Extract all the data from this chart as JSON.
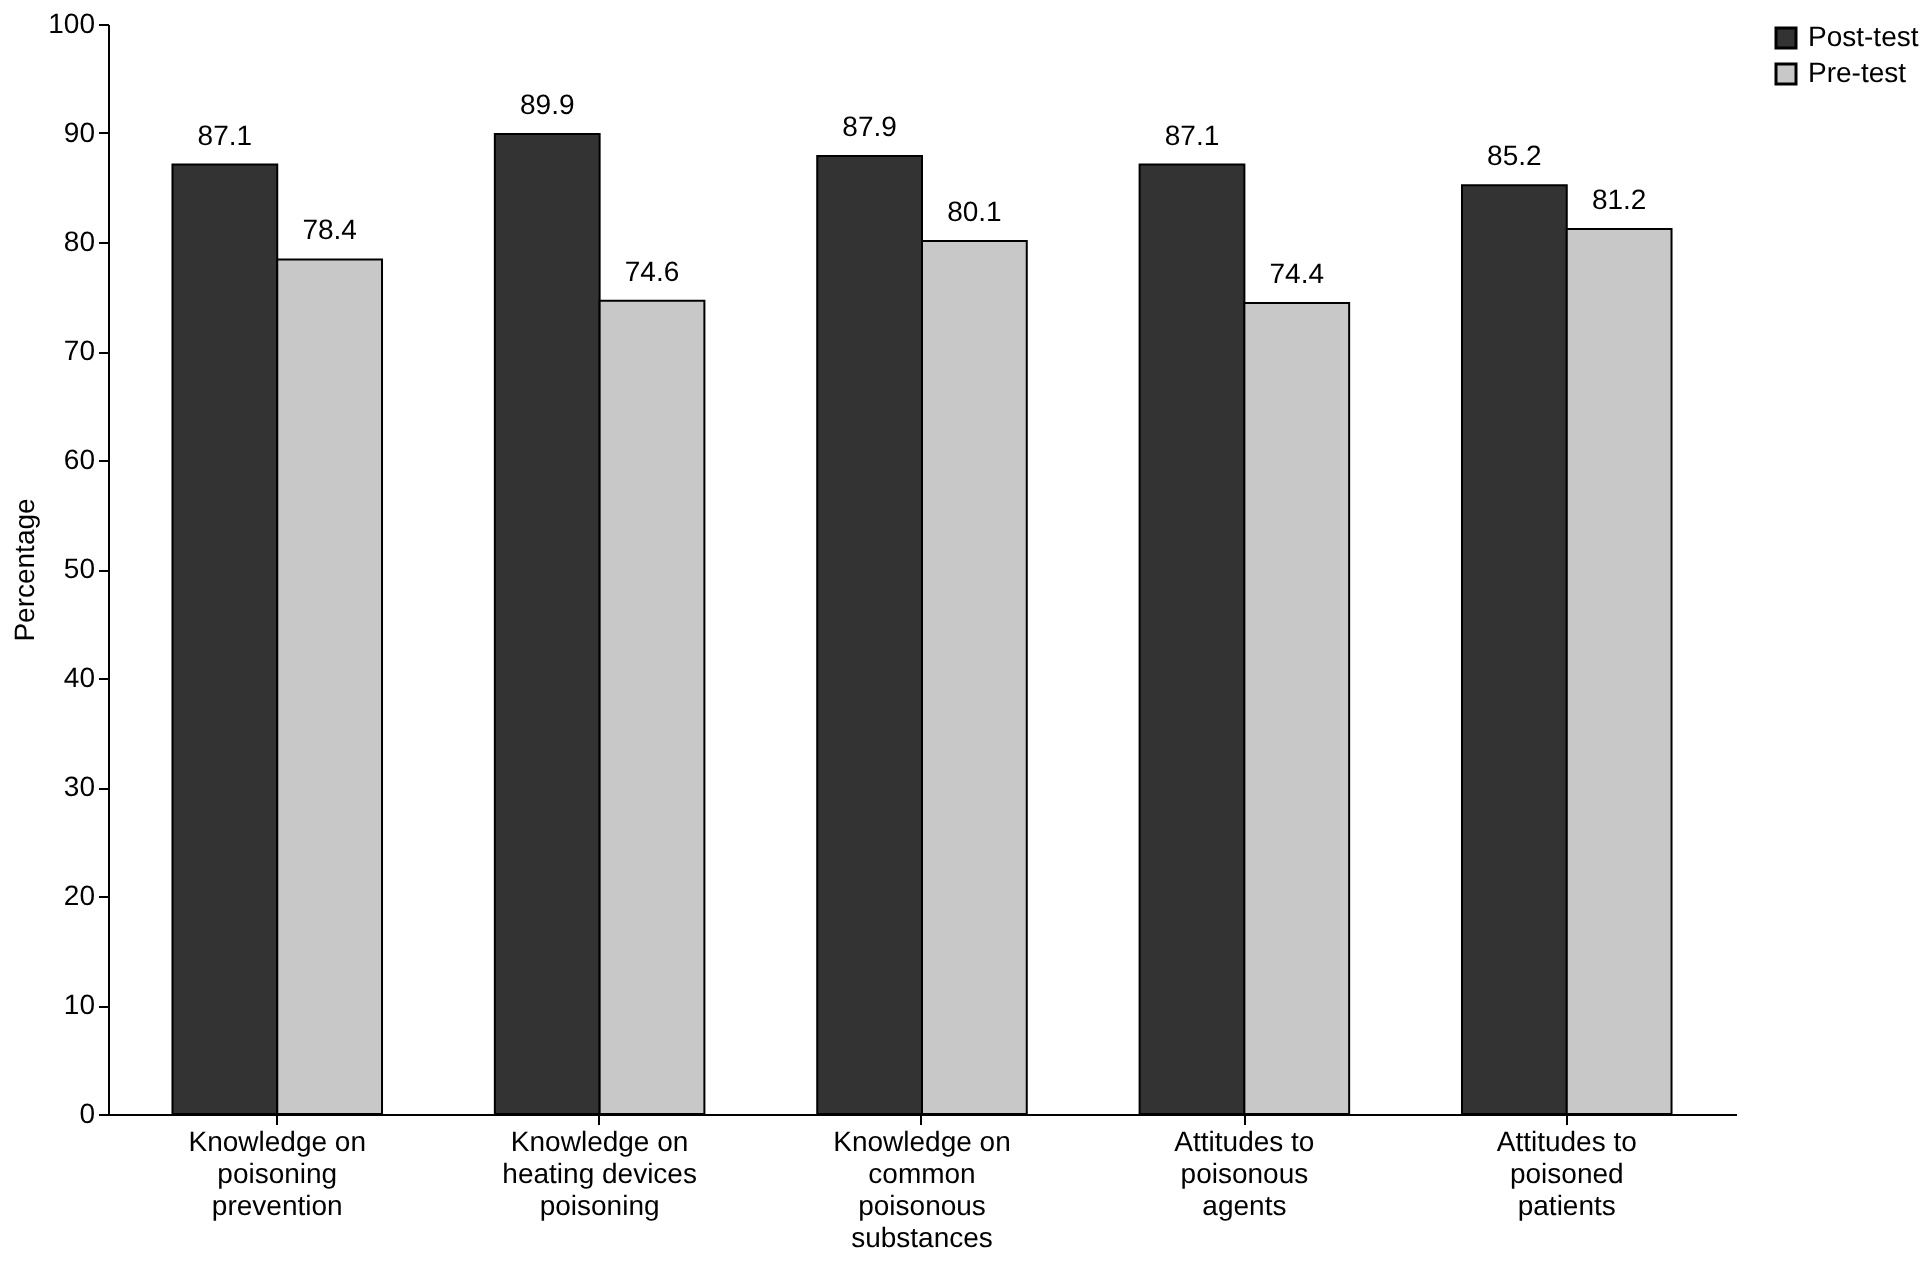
{
  "chart_data": {
    "type": "bar",
    "ylabel": "Percentage",
    "categories": [
      "Knowledge on poisoning prevention",
      "Knowledge on heating devices poisoning",
      "Knowledge on common poisonous substances",
      "Attitudes to poisonous agents",
      "Attitudes to poisoned patients"
    ],
    "series": [
      {
        "name": "Post-test",
        "color": "#333333",
        "values": [
          87.1,
          89.9,
          87.9,
          87.1,
          85.2
        ]
      },
      {
        "name": "Pre-test",
        "color": "#c8c8c8",
        "values": [
          78.4,
          74.6,
          80.1,
          74.4,
          81.2
        ]
      }
    ],
    "ylim": [
      0,
      100
    ],
    "yticks": [
      0,
      10,
      20,
      30,
      40,
      50,
      60,
      70,
      80,
      90,
      100
    ],
    "grid": false,
    "legend": "right",
    "data_labels": true
  }
}
